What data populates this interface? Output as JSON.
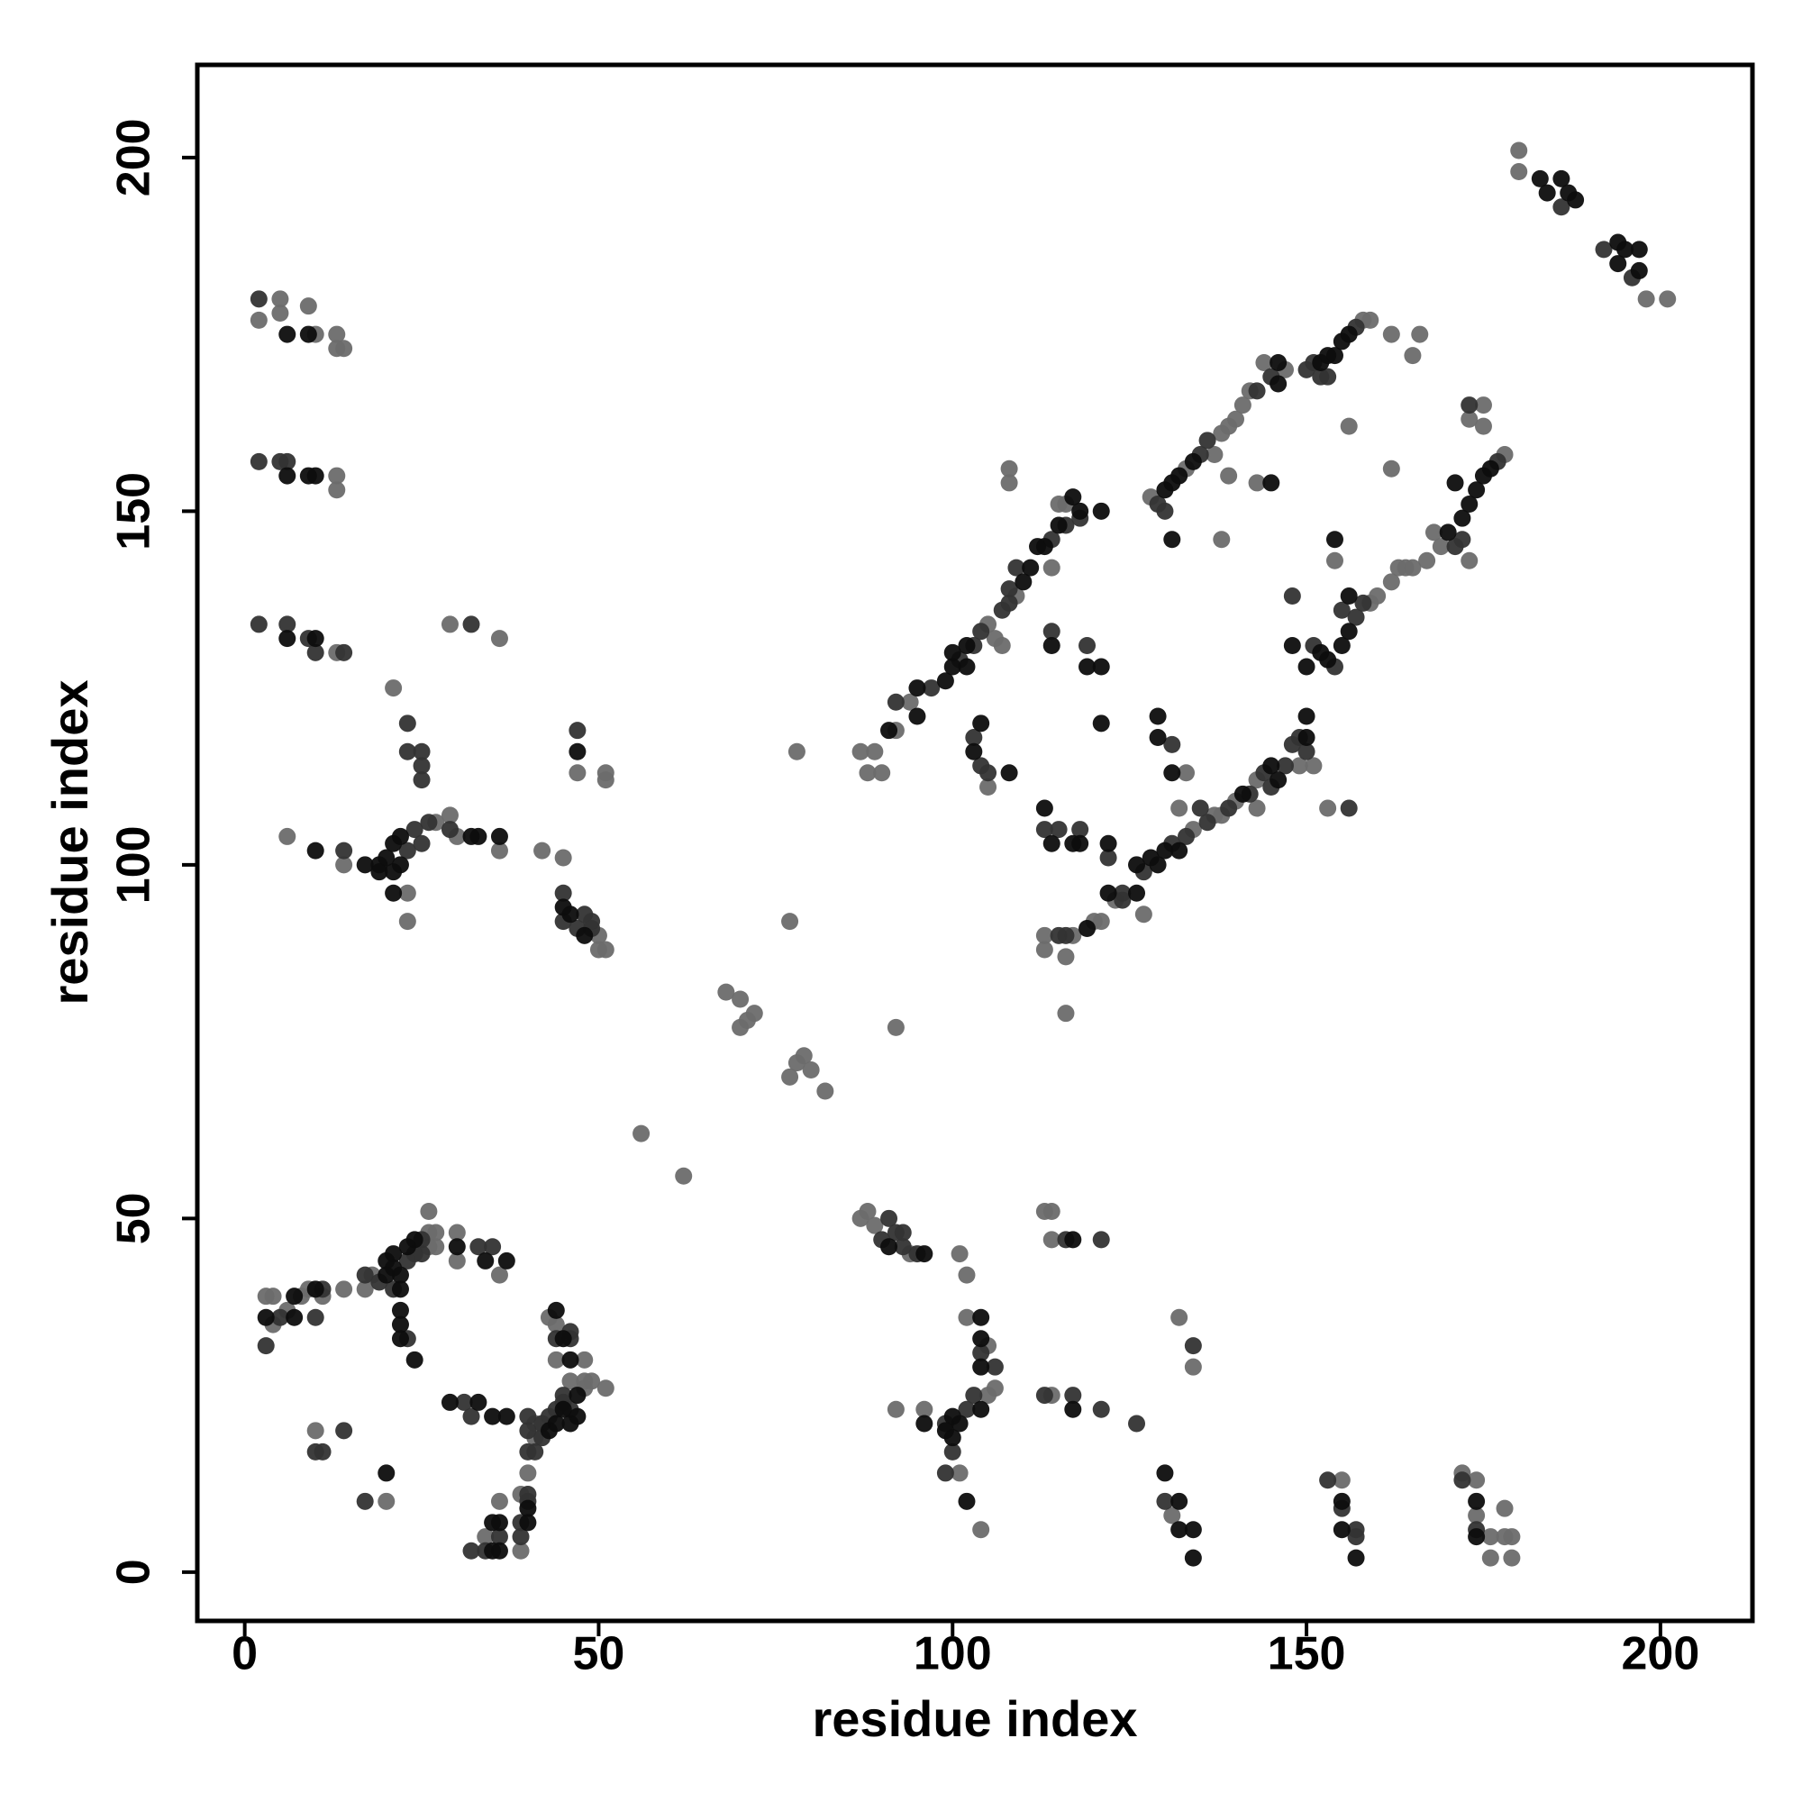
{
  "chart_data": {
    "type": "scatter",
    "xlabel": "residue index",
    "ylabel": "residue index",
    "xlim": [
      -6.7,
      213
    ],
    "ylim": [
      -6.9,
      213.1
    ],
    "xticks": [
      0,
      50,
      100,
      150,
      200
    ],
    "yticks": [
      0,
      50,
      100,
      150,
      200
    ],
    "grid": false,
    "series": [
      {
        "color": "#6b6b6b",
        "x": [
          180,
          180,
          198,
          201,
          2,
          5,
          5,
          9,
          10,
          13,
          14,
          13,
          13,
          13,
          13,
          29,
          36,
          21,
          6,
          14,
          27,
          29,
          30,
          36,
          23,
          23,
          42,
          45,
          47,
          51,
          51,
          50,
          50,
          51,
          56,
          62,
          68,
          70,
          70,
          71,
          72,
          77,
          78,
          77,
          78,
          79,
          80,
          82,
          92,
          116,
          87,
          88,
          89,
          90,
          92,
          94,
          105,
          106,
          109,
          115,
          116,
          108,
          108,
          114,
          107,
          105,
          128,
          133,
          137,
          138,
          139,
          140,
          139,
          141,
          142,
          144,
          147,
          158,
          159,
          162,
          165,
          166,
          143,
          156,
          162,
          138,
          132,
          134,
          137,
          138,
          140,
          143,
          143,
          149,
          151,
          159,
          160,
          162,
          163,
          164,
          165,
          167,
          168,
          169,
          178,
          173,
          175,
          173,
          175,
          154,
          153,
          133,
          113,
          113,
          116,
          117,
          120,
          123,
          121,
          127,
          87,
          88,
          89,
          94,
          101,
          102,
          102,
          105,
          106,
          105,
          101,
          104,
          92,
          96,
          113,
          114,
          114,
          114,
          132,
          134,
          131,
          155,
          172,
          174,
          174,
          176,
          176,
          178,
          178,
          179,
          179,
          3,
          4,
          4,
          6,
          8,
          9,
          11,
          14,
          17,
          18,
          26,
          26,
          26,
          27,
          27,
          30,
          30,
          36,
          10,
          20,
          41,
          41,
          48,
          49,
          48,
          46,
          44,
          44,
          43,
          48,
          51,
          40,
          39,
          39,
          36,
          34
        ],
        "y": [
          201,
          198,
          180,
          180,
          177,
          180,
          178,
          179,
          175,
          175,
          173,
          173,
          155,
          153,
          130,
          134,
          132,
          125,
          104,
          100,
          106,
          107,
          104,
          102,
          96,
          92,
          102,
          101,
          113,
          113,
          112,
          90,
          88,
          88,
          62,
          56,
          82,
          81,
          77,
          78,
          79,
          92,
          116,
          70,
          72,
          73,
          71,
          68,
          77,
          79,
          116,
          113,
          116,
          113,
          119,
          123,
          134,
          132,
          138,
          151,
          151,
          156,
          154,
          142,
          131,
          111,
          152,
          156,
          158,
          161,
          162,
          163,
          155,
          165,
          167,
          171,
          170,
          177,
          177,
          175,
          172,
          175,
          154,
          162,
          156,
          146,
          108,
          105,
          107,
          107,
          109,
          108,
          112,
          114,
          114,
          137,
          138,
          140,
          142,
          142,
          142,
          143,
          147,
          145,
          158,
          143,
          165,
          163,
          162,
          143,
          108,
          113,
          90,
          88,
          87,
          90,
          92,
          95,
          92,
          93,
          50,
          51,
          49,
          45,
          45,
          42,
          36,
          32,
          26,
          25,
          14,
          6,
          23,
          23,
          51,
          51,
          47,
          25,
          36,
          29,
          8,
          13,
          14,
          13,
          8,
          5,
          2,
          9,
          5,
          5,
          2,
          39,
          39,
          35,
          37,
          39,
          40,
          39,
          40,
          40,
          42,
          46,
          48,
          51,
          48,
          46,
          48,
          44,
          42,
          20,
          10,
          21,
          19,
          26,
          27,
          27,
          27,
          30,
          35,
          36,
          30,
          26,
          14,
          11,
          3,
          10,
          5
        ]
      },
      {
        "color": "#333333",
        "x": [
          186,
          192,
          196,
          2,
          2,
          5,
          6,
          2,
          6,
          9,
          10,
          14,
          32,
          23,
          23,
          25,
          25,
          25,
          14,
          23,
          24,
          25,
          26,
          29,
          47,
          45,
          45,
          47,
          48,
          49,
          49,
          92,
          97,
          101,
          103,
          104,
          107,
          108,
          108,
          109,
          114,
          116,
          118,
          114,
          119,
          103,
          104,
          105,
          129,
          130,
          135,
          136,
          143,
          145,
          150,
          151,
          153,
          157,
          152,
          113,
          115,
          118,
          122,
          124,
          124,
          127,
          131,
          133,
          135,
          136,
          139,
          142,
          144,
          145,
          147,
          148,
          149,
          150,
          154,
          157,
          158,
          171,
          177,
          172,
          173,
          155,
          148,
          151,
          156,
          131,
          115,
          116,
          90,
          91,
          92,
          93,
          93,
          95,
          104,
          106,
          103,
          102,
          99,
          100,
          99,
          116,
          121,
          113,
          117,
          121,
          126,
          134,
          130,
          153,
          155,
          157,
          157,
          172,
          174,
          3,
          5,
          10,
          11,
          17,
          19,
          21,
          23,
          24,
          25,
          25,
          33,
          35,
          23,
          10,
          11,
          14,
          17,
          31,
          32,
          40,
          40,
          40,
          41,
          42,
          42,
          43,
          44,
          45,
          46,
          45,
          44,
          46,
          46,
          40,
          40,
          39,
          39,
          36,
          34,
          32
        ],
        "y": [
          193,
          187,
          183,
          180,
          157,
          157,
          157,
          134,
          134,
          132,
          130,
          130,
          134,
          120,
          116,
          116,
          114,
          112,
          102,
          102,
          105,
          103,
          106,
          105,
          119,
          96,
          92,
          91,
          93,
          91,
          92,
          123,
          125,
          129,
          131,
          133,
          136,
          137,
          139,
          142,
          146,
          148,
          149,
          133,
          131,
          118,
          114,
          113,
          151,
          150,
          158,
          160,
          167,
          169,
          170,
          171,
          169,
          176,
          169,
          105,
          105,
          105,
          101,
          95,
          96,
          99,
          103,
          104,
          108,
          106,
          108,
          110,
          113,
          111,
          114,
          117,
          118,
          116,
          128,
          135,
          137,
          145,
          157,
          146,
          165,
          136,
          138,
          131,
          108,
          117,
          90,
          90,
          47,
          50,
          48,
          48,
          46,
          45,
          31,
          29,
          25,
          23,
          21,
          17,
          14,
          47,
          47,
          25,
          25,
          23,
          21,
          32,
          10,
          13,
          9,
          6,
          5,
          13,
          6,
          32,
          36,
          36,
          40,
          42,
          41,
          40,
          44,
          45,
          45,
          47,
          46,
          46,
          33,
          17,
          17,
          20,
          10,
          24,
          22,
          22,
          20,
          17,
          17,
          19,
          21,
          22,
          23,
          24,
          23,
          25,
          33,
          33,
          34,
          11,
          10,
          7,
          5,
          5,
          3,
          3
        ]
      },
      {
        "color": "#0d0d0d",
        "x": [
          183,
          184,
          186,
          187,
          188,
          194,
          195,
          194,
          197,
          197,
          6,
          9,
          6,
          9,
          10,
          6,
          10,
          10,
          17,
          19,
          19,
          20,
          21,
          21,
          22,
          22,
          32,
          33,
          36,
          21,
          47,
          45,
          46,
          48,
          91,
          95,
          95,
          99,
          100,
          100,
          102,
          102,
          110,
          111,
          112,
          113,
          115,
          117,
          118,
          121,
          114,
          119,
          121,
          121,
          104,
          103,
          108,
          130,
          131,
          132,
          134,
          146,
          146,
          152,
          153,
          154,
          155,
          156,
          145,
          131,
          113,
          114,
          117,
          118,
          122,
          122,
          126,
          126,
          128,
          129,
          130,
          132,
          141,
          145,
          146,
          150,
          150,
          152,
          153,
          155,
          156,
          170,
          172,
          173,
          174,
          175,
          176,
          171,
          156,
          154,
          148,
          150,
          129,
          129,
          131,
          119,
          91,
          96,
          104,
          104,
          104,
          104,
          101,
          100,
          99,
          100,
          102,
          96,
          117,
          117,
          130,
          132,
          132,
          134,
          134,
          155,
          155,
          157,
          174,
          174,
          3,
          7,
          7,
          10,
          20,
          20,
          21,
          21,
          22,
          22,
          23,
          24,
          30,
          34,
          37,
          22,
          22,
          22,
          24,
          20,
          29,
          33,
          35,
          37,
          43,
          44,
          45,
          46,
          47,
          47,
          44,
          45,
          46,
          40,
          40,
          36,
          35,
          35,
          36
        ],
        "y": [
          197,
          195,
          197,
          195,
          194,
          188,
          187,
          185,
          187,
          184,
          175,
          175,
          155,
          155,
          155,
          132,
          132,
          102,
          100,
          100,
          99,
          101,
          99,
          103,
          104,
          100,
          104,
          104,
          104,
          96,
          116,
          94,
          93,
          90,
          119,
          125,
          121,
          126,
          128,
          130,
          131,
          128,
          140,
          142,
          145,
          145,
          148,
          152,
          150,
          150,
          131,
          128,
          128,
          120,
          120,
          116,
          113,
          153,
          154,
          155,
          157,
          171,
          168,
          171,
          172,
          172,
          174,
          175,
          154,
          146,
          108,
          103,
          103,
          103,
          103,
          96,
          96,
          100,
          101,
          100,
          102,
          102,
          110,
          114,
          112,
          118,
          121,
          130,
          129,
          131,
          133,
          147,
          149,
          151,
          153,
          155,
          156,
          154,
          138,
          146,
          131,
          128,
          121,
          118,
          113,
          91,
          46,
          45,
          36,
          33,
          29,
          23,
          21,
          22,
          20,
          19,
          10,
          21,
          47,
          23,
          14,
          10,
          6,
          6,
          2,
          10,
          6,
          2,
          10,
          5,
          36,
          39,
          36,
          40,
          42,
          44,
          45,
          43,
          42,
          40,
          46,
          47,
          46,
          44,
          44,
          37,
          35,
          33,
          30,
          14,
          24,
          24,
          22,
          22,
          20,
          21,
          23,
          21,
          25,
          22,
          37,
          33,
          30,
          9,
          7,
          7,
          7,
          3,
          3
        ]
      }
    ]
  }
}
